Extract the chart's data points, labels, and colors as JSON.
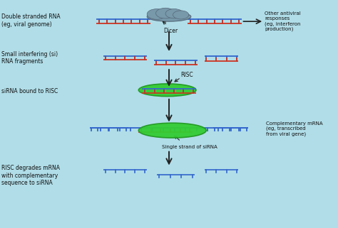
{
  "bg_color": "#b0dde8",
  "blue_color": "#3366cc",
  "red_color": "#cc3322",
  "green_color": "#33cc33",
  "green_edge": "#229922",
  "gray_color": "#7799aa",
  "gray_edge": "#556677",
  "text_color": "#111111",
  "arrow_color": "#222222",
  "figsize": [
    4.74,
    3.21
  ],
  "dpi": 100,
  "labels": {
    "double_stranded": "Double stranded RNA\n(eg, viral genome)",
    "small_interfering": "Small interfering (si)\nRNA fragments",
    "sirna_bound": "siRNA bound to RISC",
    "risc_degrades": "RISC degrades mRNA\nwith complementary\nsequence to siRNA",
    "other_antiviral": "Other antiviral\nresponses\n(eg, interferon\nproduction)",
    "complementary_mrna": "Complementary mRNA\n(eg, transcribed\nfrom viral gene)",
    "dicer": "Dicer",
    "risc": "RISC",
    "single_strand": "Single strand of siRNA"
  },
  "font_size_label": 5.5,
  "font_size_small": 5.0
}
